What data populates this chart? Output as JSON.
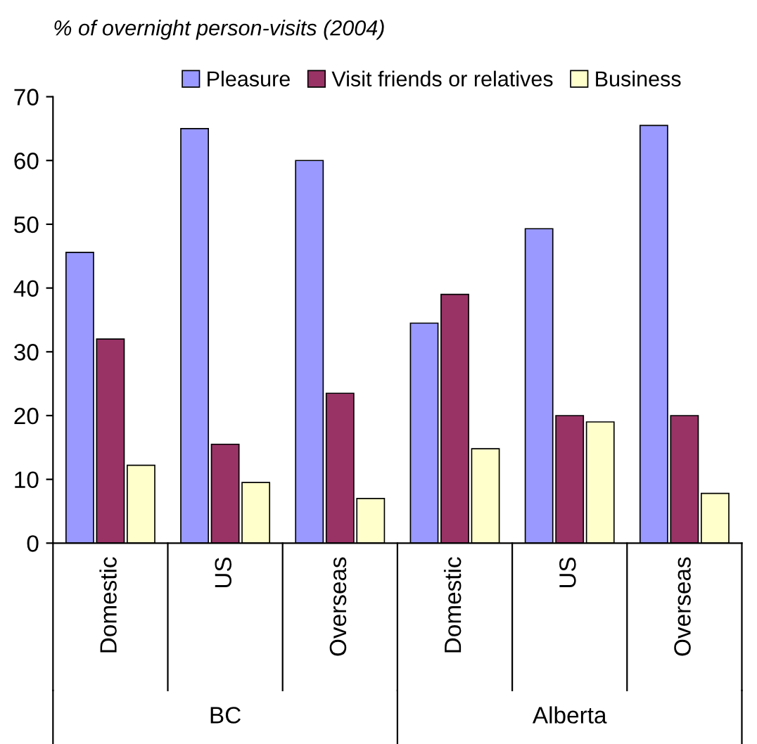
{
  "chart_data": {
    "type": "bar",
    "title": "% of overnight person-visits (2004)",
    "categories": [
      "Domestic",
      "US",
      "Overseas",
      "Domestic",
      "US",
      "Overseas"
    ],
    "series": [
      {
        "name": "Pleasure",
        "color": "#9999ff",
        "values": [
          45.6,
          65,
          60,
          34.5,
          49.3,
          65.5
        ]
      },
      {
        "name": "Visit friends or relatives",
        "color": "#993366",
        "values": [
          32,
          15.5,
          23.5,
          39,
          20,
          20
        ]
      },
      {
        "name": "Business",
        "color": "#ffffcc",
        "values": [
          12.2,
          9.5,
          7,
          14.8,
          19,
          7.8
        ]
      }
    ],
    "annotations": [
      "BC",
      "Alberta"
    ],
    "ylim": [
      0,
      70
    ],
    "yticks": [
      0,
      10,
      20,
      30,
      40,
      50,
      60,
      70
    ],
    "grid": false,
    "legend": "top"
  }
}
